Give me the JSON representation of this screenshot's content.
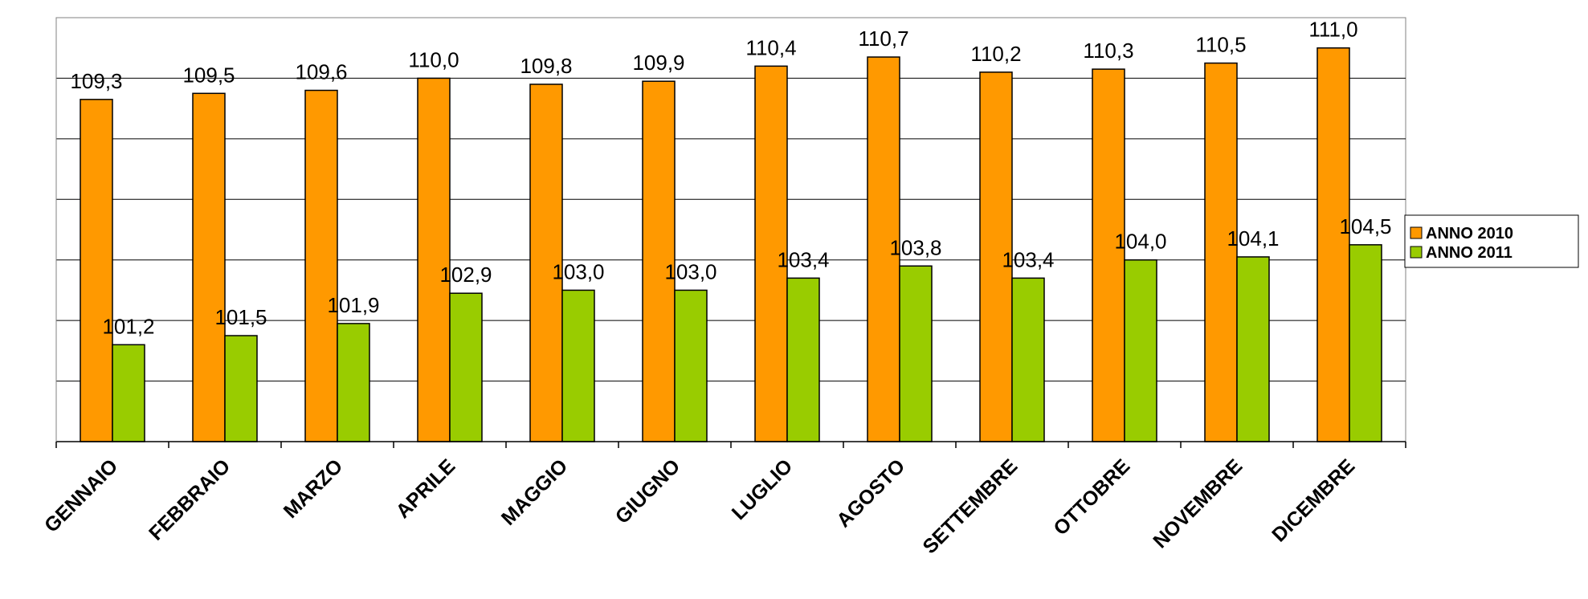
{
  "chart_data": {
    "type": "bar",
    "categories": [
      "GENNAIO",
      "FEBBRAIO",
      "MARZO",
      "APRILE",
      "MAGGIO",
      "GIUGNO",
      "LUGLIO",
      "AGOSTO",
      "SETTEMBRE",
      "OTTOBRE",
      "NOVEMBRE",
      "DICEMBRE"
    ],
    "series": [
      {
        "name": "ANNO 2010",
        "color": "#FF9900",
        "values": [
          109.3,
          109.5,
          109.6,
          110.0,
          109.8,
          109.9,
          110.4,
          110.7,
          110.2,
          110.3,
          110.5,
          111.0
        ],
        "labels": [
          "109,3",
          "109,5",
          "109,6",
          "110,0",
          "109,8",
          "109,9",
          "110,4",
          "110,7",
          "110,2",
          "110,3",
          "110,5",
          "111,0"
        ]
      },
      {
        "name": "ANNO 2011",
        "color": "#99CC00",
        "values": [
          101.2,
          101.5,
          101.9,
          102.9,
          103.0,
          103.0,
          103.4,
          103.8,
          103.4,
          104.0,
          104.1,
          104.5
        ],
        "labels": [
          "101,2",
          "101,5",
          "101,9",
          "102,9",
          "103,0",
          "103,0",
          "103,4",
          "103,8",
          "103,4",
          "104,0",
          "104,1",
          "104,5"
        ]
      }
    ],
    "title": "",
    "xlabel": "",
    "ylabel": "",
    "ylim": [
      98,
      112
    ],
    "y_gridline_step": 2,
    "y_tick_labels_shown": false,
    "grid": true,
    "legend": "right"
  }
}
